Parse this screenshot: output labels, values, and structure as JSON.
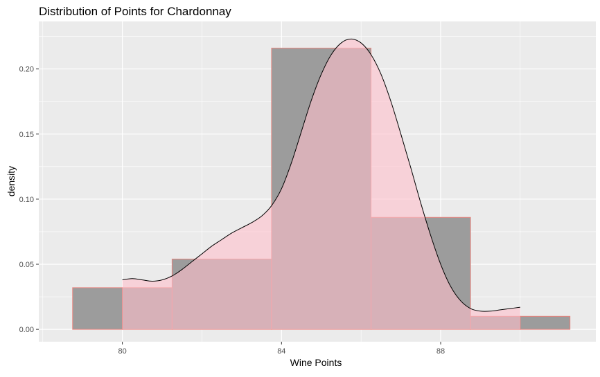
{
  "chart_data": {
    "type": "histogram-density",
    "title": "Distribution of Points for Chardonnay",
    "xlabel": "Wine Points",
    "ylabel": "density",
    "xlim": [
      77.9,
      91.9
    ],
    "ylim": [
      -0.0095,
      0.2365
    ],
    "x_ticks": [
      80,
      84,
      88
    ],
    "x_tick_labels": [
      "80",
      "84",
      "88"
    ],
    "y_ticks": [
      0.0,
      0.05,
      0.1,
      0.15,
      0.2
    ],
    "y_tick_labels": [
      "0.00",
      "0.05",
      "0.10",
      "0.15",
      "0.20"
    ],
    "grid": true,
    "histogram": {
      "bin_width": 2.5,
      "bins": [
        {
          "x0": 78.75,
          "x1": 80.0,
          "density": 0.032
        },
        {
          "x0": 80.0,
          "x1": 81.25,
          "density": 0.032
        },
        {
          "x0": 81.25,
          "x1": 83.75,
          "density": 0.054
        },
        {
          "x0": 83.75,
          "x1": 86.25,
          "density": 0.216
        },
        {
          "x0": 86.25,
          "x1": 88.75,
          "density": 0.086
        },
        {
          "x0": 88.75,
          "x1": 90.0,
          "density": 0.01
        },
        {
          "x0": 90.0,
          "x1": 91.25,
          "density": 0.01
        }
      ]
    },
    "density_curve": {
      "x": [
        80.0,
        80.25,
        80.5,
        80.75,
        81.0,
        81.25,
        81.5,
        81.75,
        82.0,
        82.25,
        82.5,
        82.75,
        83.0,
        83.25,
        83.5,
        83.75,
        84.0,
        84.25,
        84.5,
        84.75,
        85.0,
        85.25,
        85.5,
        85.75,
        86.0,
        86.25,
        86.5,
        86.75,
        87.0,
        87.25,
        87.5,
        87.75,
        88.0,
        88.25,
        88.5,
        88.75,
        89.0,
        89.25,
        89.5,
        89.75,
        90.0
      ],
      "y": [
        0.038,
        0.039,
        0.038,
        0.037,
        0.038,
        0.041,
        0.046,
        0.052,
        0.058,
        0.064,
        0.069,
        0.074,
        0.078,
        0.082,
        0.087,
        0.095,
        0.108,
        0.128,
        0.152,
        0.176,
        0.196,
        0.211,
        0.22,
        0.223,
        0.22,
        0.211,
        0.196,
        0.175,
        0.15,
        0.124,
        0.097,
        0.072,
        0.05,
        0.033,
        0.022,
        0.016,
        0.014,
        0.014,
        0.015,
        0.016,
        0.017
      ]
    },
    "colors": {
      "panel_background": "#ebebeb",
      "grid_line": "#ffffff",
      "histogram_fill": "#9c9c9c",
      "histogram_outline": "#e8827c",
      "density_fill": "#ffc0cb",
      "density_fill_opacity": 0.6,
      "density_line": "#000000"
    }
  }
}
